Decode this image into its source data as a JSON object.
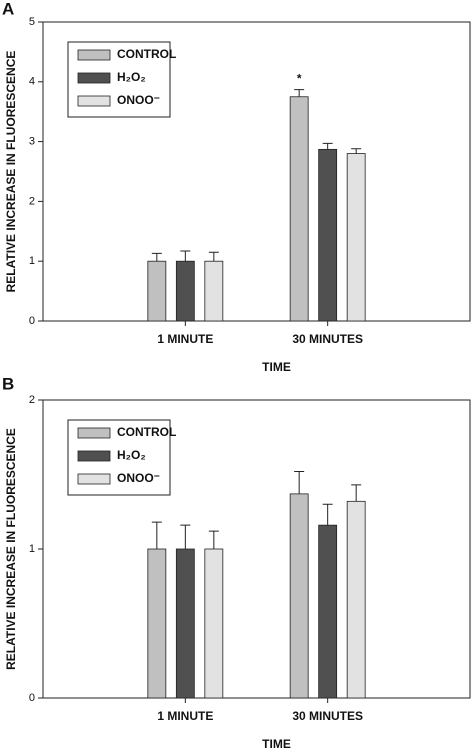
{
  "chart_data": [
    {
      "type": "bar",
      "label": "A",
      "ylabel": "RELATIVE INCREASE IN FLUORESCENCE",
      "xlabel": "TIME",
      "categories": [
        "1 MINUTE",
        "30 MINUTES"
      ],
      "series": [
        {
          "name": "CONTROL",
          "color": "#c0c0c0",
          "values": [
            1.0,
            3.75
          ],
          "errors": [
            0.13,
            0.12
          ]
        },
        {
          "name": "H₂O₂",
          "color": "#505050",
          "values": [
            1.0,
            2.87
          ],
          "errors": [
            0.17,
            0.1
          ]
        },
        {
          "name": "ONOO⁻",
          "color": "#e2e2e2",
          "values": [
            1.0,
            2.8
          ],
          "errors": [
            0.15,
            0.08
          ]
        }
      ],
      "annotations": [
        {
          "text": "*",
          "category": "30 MINUTES",
          "series": "CONTROL"
        }
      ],
      "ylim": [
        0,
        5
      ],
      "yticks": [
        0,
        1,
        2,
        3,
        4,
        5
      ]
    },
    {
      "type": "bar",
      "label": "B",
      "ylabel": "RELATIVE INCREASE IN FLUORESCENCE",
      "xlabel": "TIME",
      "categories": [
        "1 MINUTE",
        "30 MINUTES"
      ],
      "series": [
        {
          "name": "CONTROL",
          "color": "#c0c0c0",
          "values": [
            1.0,
            1.37
          ],
          "errors": [
            0.18,
            0.15
          ]
        },
        {
          "name": "H₂O₂",
          "color": "#505050",
          "values": [
            1.0,
            1.16
          ],
          "errors": [
            0.16,
            0.14
          ]
        },
        {
          "name": "ONOO⁻",
          "color": "#e2e2e2",
          "values": [
            1.0,
            1.32
          ],
          "errors": [
            0.12,
            0.11
          ]
        }
      ],
      "ylim": [
        0,
        2
      ],
      "yticks": [
        0,
        1,
        2
      ]
    }
  ]
}
